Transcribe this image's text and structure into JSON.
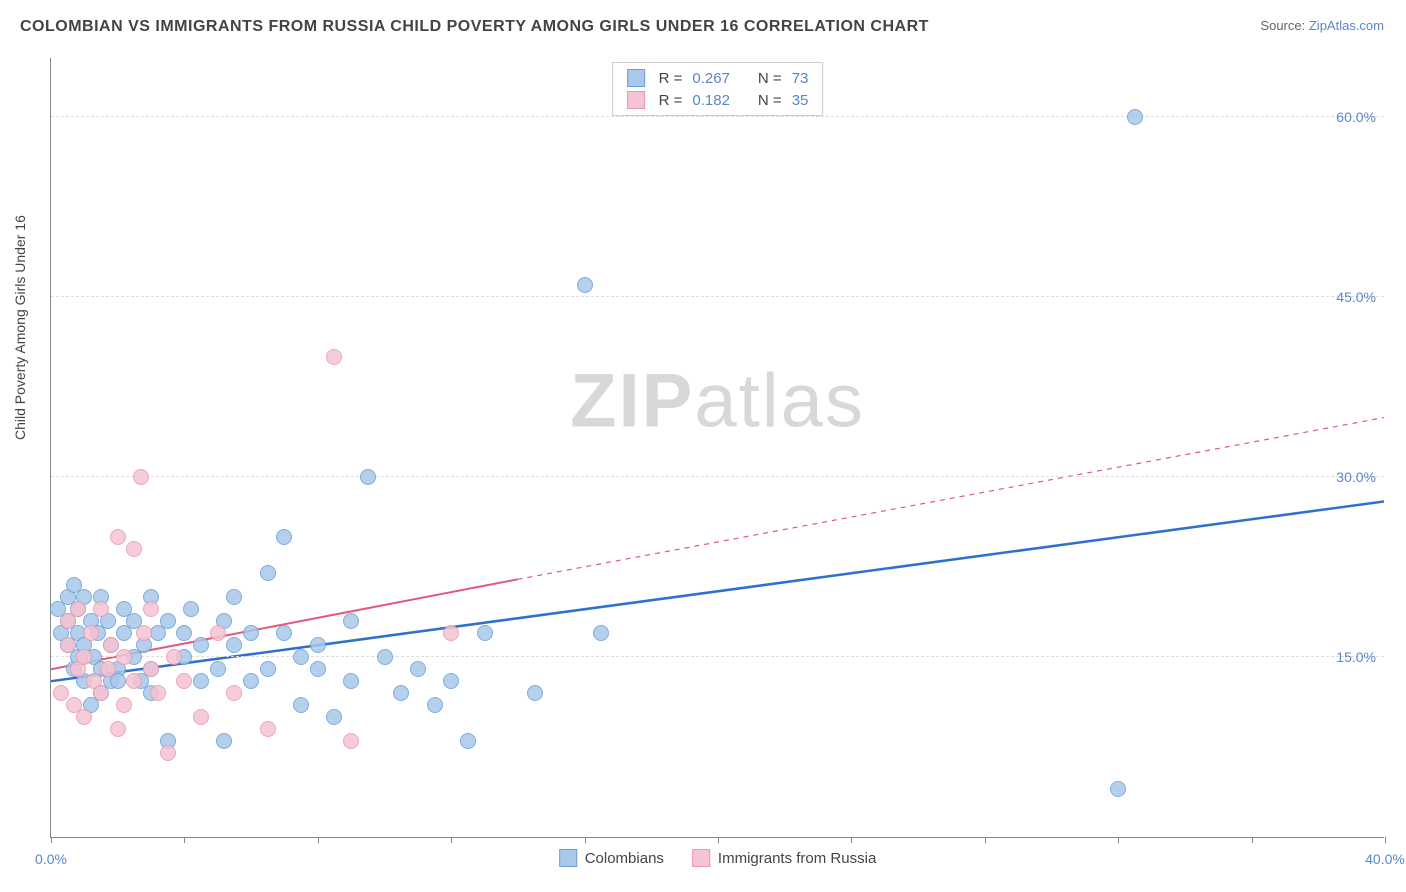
{
  "title": "COLOMBIAN VS IMMIGRANTS FROM RUSSIA CHILD POVERTY AMONG GIRLS UNDER 16 CORRELATION CHART",
  "source_label": "Source:",
  "source_name": "ZipAtlas.com",
  "y_axis_label": "Child Poverty Among Girls Under 16",
  "watermark": {
    "bold": "ZIP",
    "rest": "atlas"
  },
  "chart": {
    "type": "scatter-with-regression",
    "background_color": "#ffffff",
    "grid_color": "#dddddd",
    "axis_color": "#888888",
    "label_color": "#5a86c8",
    "xlim": [
      0,
      40
    ],
    "ylim": [
      0,
      65
    ],
    "x_ticks": [
      0,
      4,
      8,
      12,
      16,
      20,
      24,
      28,
      32,
      36,
      40
    ],
    "x_tick_labels": {
      "0": "0.0%",
      "40": "40.0%"
    },
    "y_gridlines": [
      15,
      30,
      45,
      60
    ],
    "y_tick_labels": {
      "15": "15.0%",
      "30": "30.0%",
      "45": "45.0%",
      "60": "60.0%"
    },
    "marker_radius": 8,
    "marker_stroke_width": 1.2,
    "marker_fill_opacity": 0.35
  },
  "series": [
    {
      "name": "Colombians",
      "color_stroke": "#6a9fd8",
      "color_fill": "#a9c8ea",
      "trend_color": "#2f6fd0",
      "trend_width": 2.5,
      "stat_R": "0.267",
      "stat_N": "73",
      "trend": {
        "x1": 0,
        "y1": 13.0,
        "x2": 40,
        "y2": 28.0
      },
      "data": [
        [
          0.2,
          19
        ],
        [
          0.3,
          17
        ],
        [
          0.5,
          16
        ],
        [
          0.5,
          18
        ],
        [
          0.5,
          20
        ],
        [
          0.7,
          14
        ],
        [
          0.7,
          21
        ],
        [
          0.8,
          19
        ],
        [
          0.8,
          17
        ],
        [
          0.8,
          15
        ],
        [
          1.0,
          13
        ],
        [
          1.0,
          16
        ],
        [
          1.0,
          20
        ],
        [
          1.2,
          18
        ],
        [
          1.2,
          11
        ],
        [
          1.3,
          15
        ],
        [
          1.4,
          17
        ],
        [
          1.5,
          14
        ],
        [
          1.5,
          12
        ],
        [
          1.5,
          20
        ],
        [
          1.7,
          18
        ],
        [
          1.8,
          13
        ],
        [
          1.8,
          16
        ],
        [
          2.0,
          14
        ],
        [
          2.0,
          13
        ],
        [
          2.2,
          17
        ],
        [
          2.2,
          19
        ],
        [
          2.5,
          15
        ],
        [
          2.5,
          18
        ],
        [
          2.7,
          13
        ],
        [
          2.8,
          16
        ],
        [
          3.0,
          20
        ],
        [
          3.0,
          14
        ],
        [
          3.0,
          12
        ],
        [
          3.2,
          17
        ],
        [
          3.5,
          18
        ],
        [
          3.5,
          8
        ],
        [
          4.0,
          15
        ],
        [
          4.0,
          17
        ],
        [
          4.2,
          19
        ],
        [
          4.5,
          13
        ],
        [
          4.5,
          16
        ],
        [
          5.0,
          14
        ],
        [
          5.2,
          18
        ],
        [
          5.2,
          8
        ],
        [
          5.5,
          16
        ],
        [
          5.5,
          20
        ],
        [
          6.0,
          17
        ],
        [
          6.0,
          13
        ],
        [
          6.5,
          14
        ],
        [
          6.5,
          22
        ],
        [
          7.0,
          17
        ],
        [
          7.0,
          25
        ],
        [
          7.5,
          15
        ],
        [
          7.5,
          11
        ],
        [
          8.0,
          16
        ],
        [
          8.0,
          14
        ],
        [
          8.5,
          10
        ],
        [
          9.0,
          18
        ],
        [
          9.0,
          13
        ],
        [
          9.5,
          30
        ],
        [
          10.0,
          15
        ],
        [
          10.5,
          12
        ],
        [
          11.0,
          14
        ],
        [
          11.5,
          11
        ],
        [
          12.0,
          13
        ],
        [
          12.5,
          8
        ],
        [
          13.0,
          17
        ],
        [
          14.5,
          12
        ],
        [
          16.0,
          46
        ],
        [
          16.5,
          17
        ],
        [
          32.0,
          4
        ],
        [
          32.5,
          60
        ]
      ]
    },
    {
      "name": "Immigrants from Russia",
      "color_stroke": "#e89ab0",
      "color_fill": "#f5c4d2",
      "trend_color": "#e15a7a",
      "trend_width": 2,
      "stat_R": "0.182",
      "stat_N": "35",
      "trend": {
        "x1": 0,
        "y1": 14.0,
        "x2": 14,
        "y2": 21.5
      },
      "trend_dashed_to": {
        "x2": 40,
        "y2": 35.0
      },
      "data": [
        [
          0.3,
          12
        ],
        [
          0.5,
          18
        ],
        [
          0.5,
          16
        ],
        [
          0.7,
          11
        ],
        [
          0.8,
          14
        ],
        [
          0.8,
          19
        ],
        [
          1.0,
          15
        ],
        [
          1.0,
          10
        ],
        [
          1.2,
          17
        ],
        [
          1.3,
          13
        ],
        [
          1.5,
          12
        ],
        [
          1.5,
          19
        ],
        [
          1.7,
          14
        ],
        [
          1.8,
          16
        ],
        [
          2.0,
          9
        ],
        [
          2.0,
          25
        ],
        [
          2.2,
          15
        ],
        [
          2.2,
          11
        ],
        [
          2.5,
          24
        ],
        [
          2.5,
          13
        ],
        [
          2.7,
          30
        ],
        [
          2.8,
          17
        ],
        [
          3.0,
          14
        ],
        [
          3.0,
          19
        ],
        [
          3.2,
          12
        ],
        [
          3.5,
          7
        ],
        [
          3.7,
          15
        ],
        [
          4.0,
          13
        ],
        [
          4.5,
          10
        ],
        [
          5.0,
          17
        ],
        [
          5.5,
          12
        ],
        [
          6.5,
          9
        ],
        [
          8.5,
          40
        ],
        [
          9.0,
          8
        ],
        [
          12.0,
          17
        ]
      ]
    }
  ],
  "stats_box": {
    "rows": [
      {
        "swatch_fill": "#a9c8ea",
        "swatch_stroke": "#6a9fd8",
        "R": "0.267",
        "N": "73"
      },
      {
        "swatch_fill": "#f5c4d2",
        "swatch_stroke": "#e89ab0",
        "R": "0.182",
        "N": "35"
      }
    ],
    "label_R": "R =",
    "label_N": "N ="
  },
  "legend_bottom": [
    {
      "swatch_fill": "#a9c8ea",
      "swatch_stroke": "#6a9fd8",
      "label": "Colombians"
    },
    {
      "swatch_fill": "#f5c4d2",
      "swatch_stroke": "#e89ab0",
      "label": "Immigrants from Russia"
    }
  ]
}
